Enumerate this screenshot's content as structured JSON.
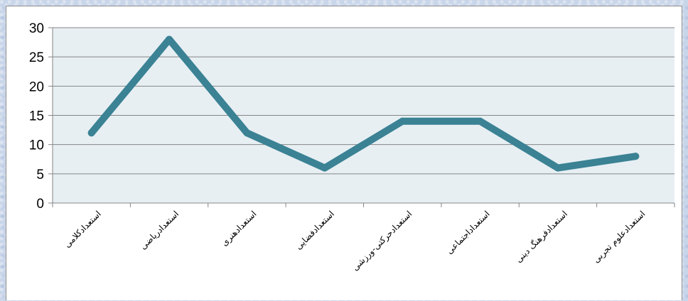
{
  "chart_data": {
    "type": "line",
    "title": "",
    "xlabel": "",
    "ylabel": "",
    "categories": [
      "استعدادکلامی",
      "استعدادریاضی",
      "استعدادهنری",
      "استعدادفضایی",
      "استعدادحرکتی-ورزشی",
      "استعداداجتماعی",
      "استعدادفرهنگ دینی",
      "استعدادعلوم تجربی"
    ],
    "series": [
      {
        "values": [
          12,
          28,
          12,
          6,
          14,
          14,
          6,
          8
        ]
      }
    ],
    "ylim": [
      0,
      30
    ],
    "yticks": [
      0,
      5,
      10,
      15,
      20,
      25,
      30
    ],
    "grid": true,
    "legend": "none",
    "colors": {
      "line": "#3a8294",
      "plot_background": "#e7eff3",
      "gridline": "#868686"
    }
  }
}
